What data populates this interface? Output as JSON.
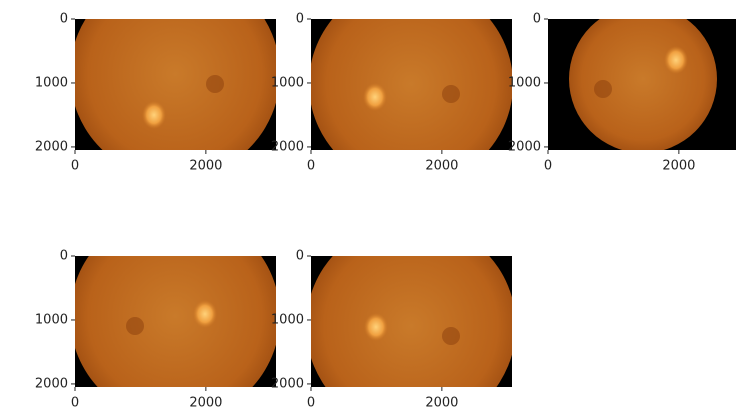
{
  "chart_data": [
    {
      "type": "image",
      "xlim": [
        0,
        3072
      ],
      "ylim": [
        2048,
        0
      ],
      "xticks": [
        0,
        2000
      ],
      "yticks": [
        0,
        1000,
        2000
      ]
    },
    {
      "type": "image",
      "xlim": [
        0,
        3072
      ],
      "ylim": [
        2048,
        0
      ],
      "xticks": [
        0,
        2000
      ],
      "yticks": [
        0,
        1000,
        2000
      ]
    },
    {
      "type": "image",
      "xlim": [
        0,
        3072
      ],
      "ylim": [
        2048,
        0
      ],
      "xticks": [
        0,
        2000
      ],
      "yticks": [
        0,
        1000,
        2000
      ]
    },
    {
      "type": "image",
      "xlim": [
        0,
        3072
      ],
      "ylim": [
        2048,
        0
      ],
      "xticks": [
        0,
        2000
      ],
      "yticks": [
        0,
        1000,
        2000
      ]
    },
    {
      "type": "image",
      "xlim": [
        0,
        3072
      ],
      "ylim": [
        2048,
        0
      ],
      "xticks": [
        0,
        2000
      ],
      "yticks": [
        0,
        1000,
        2000
      ]
    }
  ]
}
